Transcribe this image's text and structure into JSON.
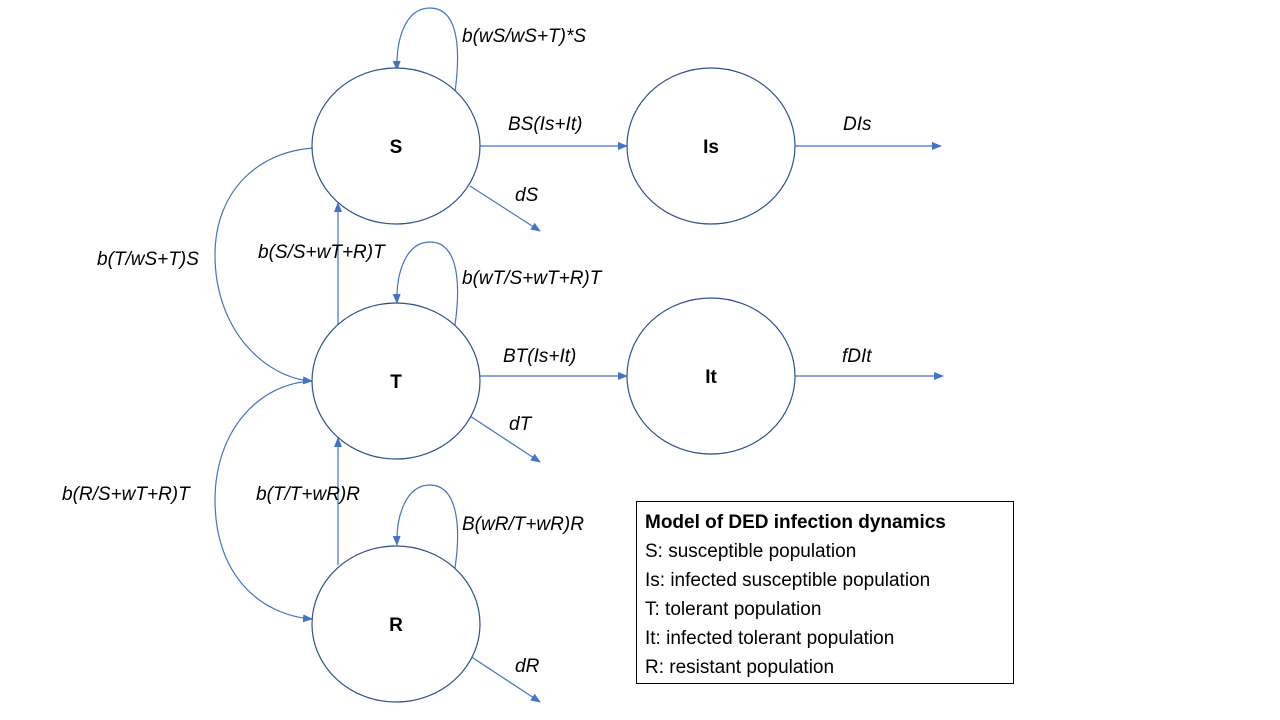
{
  "nodes": {
    "S": "S",
    "Is": "Is",
    "T": "T",
    "It": "It",
    "R": "R"
  },
  "rates": {
    "s_self": "b(wS/wS+T)*S",
    "s_to_is": "BS(Is+It)",
    "is_out": "DIs",
    "s_death": "dS",
    "s_to_t": "b(T/wS+T)S",
    "t_to_s": "b(S/S+wT+R)T",
    "t_self": "b(wT/S+wT+R)T",
    "t_to_it": "BT(Is+It)",
    "it_out": "fDIt",
    "t_death": "dT",
    "t_to_r": "b(R/S+wT+R)T",
    "r_to_t": "b(T/T+wR)R",
    "r_self": "B(wR/T+wR)R",
    "r_death": "dR"
  },
  "legend": {
    "title": "Model of DED infection dynamics",
    "items": [
      "S: susceptible population",
      "Is: infected susceptible population",
      "T: tolerant population",
      "It: infected tolerant population",
      "R: resistant population"
    ]
  }
}
